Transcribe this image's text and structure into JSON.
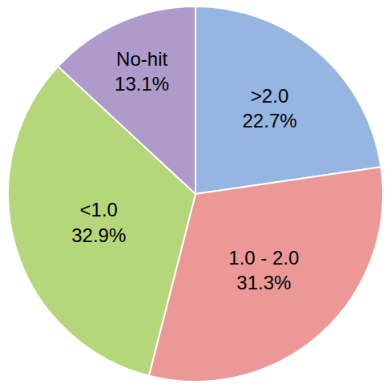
{
  "chart_data": {
    "type": "pie",
    "categories": [
      ">2.0",
      "1.0 - 2.0",
      "<1.0",
      "No-hit"
    ],
    "values": [
      22.7,
      31.3,
      32.9,
      13.1
    ],
    "value_labels": [
      "22.7%",
      "31.3%",
      "32.9%",
      "13.1%"
    ],
    "colors": [
      "#96b6e2",
      "#ec9896",
      "#b6d67c",
      "#ae9bcb"
    ],
    "data_labels": true
  }
}
